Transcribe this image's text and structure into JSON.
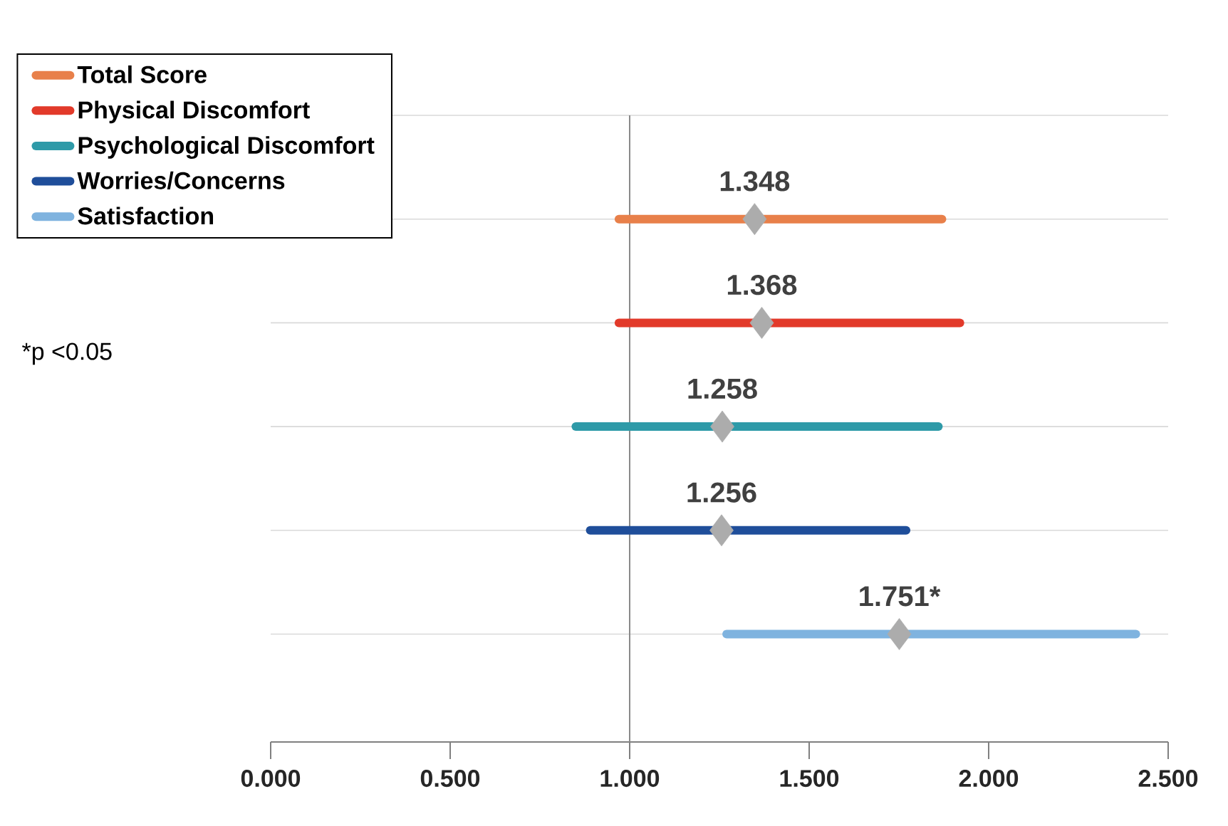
{
  "chart_data": {
    "type": "scatter",
    "orientation": "horizontal",
    "categories": [
      null,
      null,
      null,
      null,
      null
    ],
    "series": [
      {
        "name": "Total Score",
        "type": "bar",
        "color": "#e8804a",
        "base": [
          0.97,
          null,
          null,
          null,
          null
        ],
        "values": [
          0.9,
          null,
          null,
          null,
          null
        ]
      },
      {
        "name": "Physical Discomfort",
        "type": "bar",
        "color": "#e23a2a",
        "base": [
          null,
          0.97,
          null,
          null,
          null
        ],
        "values": [
          null,
          0.95,
          null,
          null,
          null
        ]
      },
      {
        "name": "Psychological Discomfort",
        "type": "bar",
        "color": "#2e9aa8",
        "base": [
          null,
          null,
          0.85,
          null,
          null
        ],
        "values": [
          null,
          null,
          1.01,
          null,
          null
        ]
      },
      {
        "name": "Worries/Concerns",
        "type": "bar",
        "color": "#1f4e9a",
        "base": [
          null,
          null,
          null,
          0.89,
          null
        ],
        "values": [
          null,
          null,
          null,
          0.88,
          null
        ]
      },
      {
        "name": "Satisfaction",
        "type": "bar",
        "color": "#7fb3df",
        "base": [
          null,
          null,
          null,
          null,
          1.27
        ],
        "values": [
          null,
          null,
          null,
          null,
          1.14
        ]
      },
      {
        "color": "#acacac",
        "values": [
          1.348,
          1.368,
          1.258,
          1.256,
          1.751
        ],
        "value_labels": [
          "1.348",
          "1.368",
          "1.258",
          "1.256",
          "1.751*"
        ]
      }
    ],
    "xlim": [
      0,
      2.5
    ],
    "xticks": [
      {
        "value": 0,
        "label": "0.000"
      },
      {
        "value": 0.5,
        "label": "0.500"
      },
      {
        "value": 1,
        "label": "1.000"
      },
      {
        "value": 1.5,
        "label": "1.500"
      },
      {
        "value": 2,
        "label": "2.000"
      },
      {
        "value": 2.5,
        "label": "2.500"
      }
    ],
    "ref_lines": [
      {
        "axis": "x",
        "value": 1.0,
        "color": "#8a8a8a"
      }
    ],
    "grid": "y",
    "legend": "top left",
    "marker": "diamond",
    "annotations": [
      "*p <0.05"
    ]
  }
}
